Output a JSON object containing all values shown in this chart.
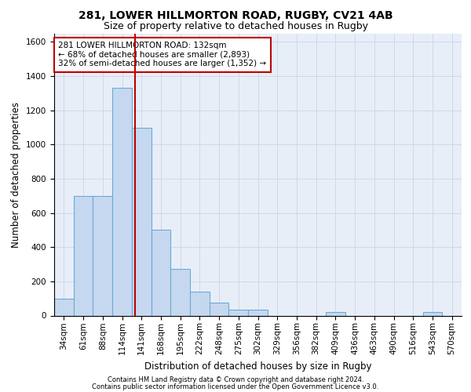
{
  "title_line1": "281, LOWER HILLMORTON ROAD, RUGBY, CV21 4AB",
  "title_line2": "Size of property relative to detached houses in Rugby",
  "xlabel": "Distribution of detached houses by size in Rugby",
  "ylabel": "Number of detached properties",
  "footer_line1": "Contains HM Land Registry data © Crown copyright and database right 2024.",
  "footer_line2": "Contains public sector information licensed under the Open Government Licence v3.0.",
  "annotation_line1": "281 LOWER HILLMORTON ROAD: 132sqm",
  "annotation_line2": "← 68% of detached houses are smaller (2,893)",
  "annotation_line3": "32% of semi-detached houses are larger (1,352) →",
  "bar_labels": [
    "34sqm",
    "61sqm",
    "88sqm",
    "114sqm",
    "141sqm",
    "168sqm",
    "195sqm",
    "222sqm",
    "248sqm",
    "275sqm",
    "302sqm",
    "329sqm",
    "356sqm",
    "382sqm",
    "409sqm",
    "436sqm",
    "463sqm",
    "490sqm",
    "516sqm",
    "543sqm",
    "570sqm"
  ],
  "bar_values": [
    100,
    700,
    700,
    1330,
    1100,
    500,
    275,
    140,
    75,
    35,
    35,
    0,
    0,
    0,
    20,
    0,
    0,
    0,
    0,
    20,
    0
  ],
  "bar_color": "#c5d8ef",
  "bar_edge_color": "#6aaad4",
  "grid_color": "#d0d8e8",
  "bg_color": "#e8eef8",
  "red_line_x": 3.67,
  "ylim": [
    0,
    1650
  ],
  "yticks": [
    0,
    200,
    400,
    600,
    800,
    1000,
    1200,
    1400,
    1600
  ],
  "title_fontsize": 10,
  "subtitle_fontsize": 9,
  "ylabel_fontsize": 8.5,
  "xlabel_fontsize": 8.5,
  "tick_fontsize": 7.5,
  "footer_fontsize": 6,
  "annot_fontsize": 7.5
}
